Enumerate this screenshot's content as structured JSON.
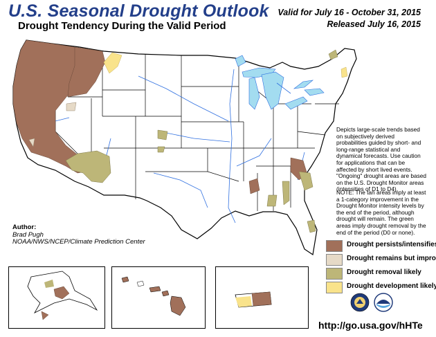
{
  "header": {
    "title": "U.S. Seasonal Drought Outlook",
    "subtitle": "Drought Tendency During the Valid Period",
    "valid": "Valid for July 16 - October 31, 2015",
    "released": "Released July 16, 2015"
  },
  "notes": {
    "description": "Depicts large-scale trends based on subjectively derived probabilities guided by short- and long-range statistical and dynamical forecasts. Use caution for applications that can be affected by short lived events. \"Ongoing\" drought areas are based on the U.S. Drought Monitor areas (intensities of D1 to D4).",
    "note": "NOTE: The tan areas imply at least a 1-category improvement in the Drought Monitor intensity levels by the end of the period, although drought will remain. The green areas imply drought removal by the end of the period (D0 or none)."
  },
  "author": {
    "heading": "Author:",
    "name": "Brad Pugh",
    "org": "NOAA/NWS/NCEP/Climate Prediction Center"
  },
  "legend": [
    {
      "label": "Drought persists/intensifies",
      "color": "#a1705a"
    },
    {
      "label": "Drought remains but improves",
      "color": "#e6dac7"
    },
    {
      "label": "Drought removal likely",
      "color": "#bdb678"
    },
    {
      "label": "Drought development likely",
      "color": "#f9e38b"
    }
  ],
  "colors": {
    "title": "#233f8a",
    "water": "#a3dcf0",
    "rivers": "#2e6fe0",
    "persists": "#a1705a",
    "improves": "#e6dac7",
    "removal": "#bdb678",
    "development": "#f9e38b"
  },
  "icons": [
    "doc-seal-icon",
    "noaa-logo-icon"
  ],
  "url": "http://go.usa.gov/hHTe"
}
